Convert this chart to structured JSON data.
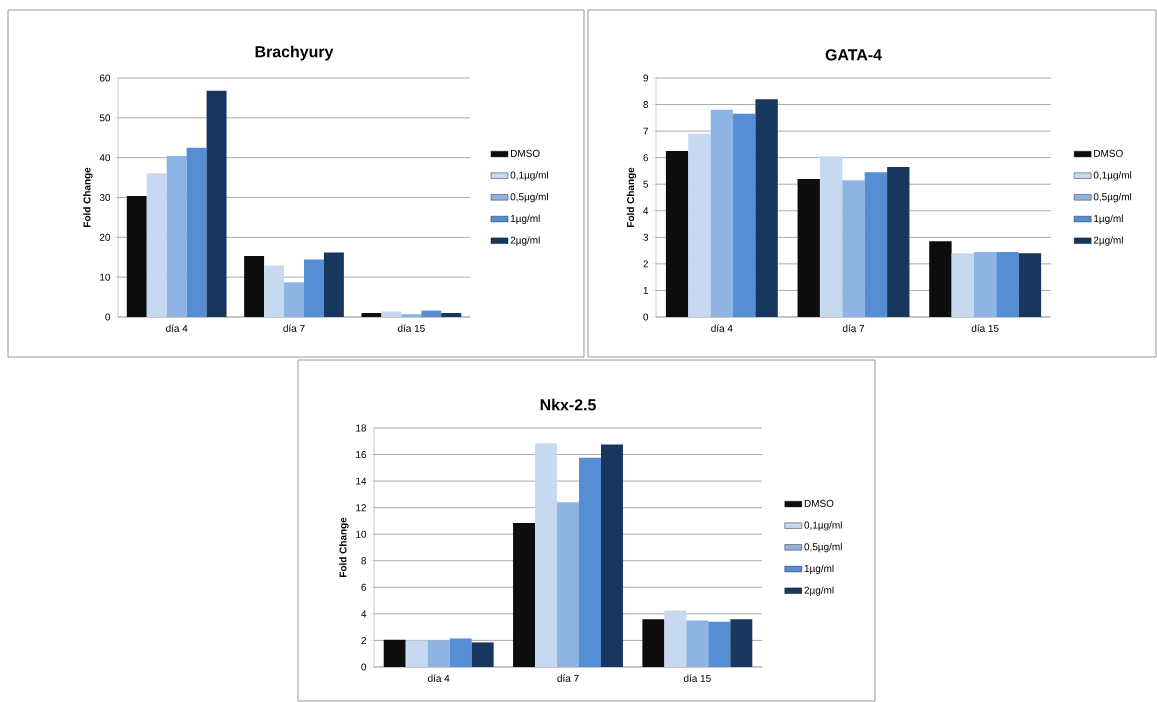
{
  "chart_data": [
    {
      "type": "bar",
      "title": "Brachyury",
      "ylabel": "Fold Change",
      "categories": [
        "día 4",
        "día 7",
        "día 15"
      ],
      "ylim": [
        0,
        60
      ],
      "yticks": [
        0,
        10,
        20,
        30,
        40,
        50,
        60
      ],
      "grid": "y",
      "legend": "right",
      "series": [
        {
          "name": "DMSO",
          "color": "#0d0d0d",
          "values": [
            30.4,
            15.3,
            1.0
          ]
        },
        {
          "name": "0,1µg/ml",
          "color": "#c6d9f1",
          "values": [
            36.1,
            12.9,
            1.4
          ]
        },
        {
          "name": "0,5µg/ml",
          "color": "#8eb4e3",
          "values": [
            40.4,
            8.7,
            0.7
          ]
        },
        {
          "name": "1µg/ml",
          "color": "#558ed5",
          "values": [
            42.5,
            14.4,
            1.6
          ]
        },
        {
          "name": "2µg/ml",
          "color": "#17375e",
          "values": [
            56.8,
            16.2,
            1.0
          ]
        }
      ]
    },
    {
      "type": "bar",
      "title": "GATA-4",
      "ylabel": "Fold Change",
      "categories": [
        "día 4",
        "día 7",
        "día 15"
      ],
      "ylim": [
        0,
        9
      ],
      "yticks": [
        0,
        1,
        2,
        3,
        4,
        5,
        6,
        7,
        8,
        9
      ],
      "grid": "y",
      "legend": "right",
      "series": [
        {
          "name": "DMSO",
          "color": "#0d0d0d",
          "values": [
            6.25,
            5.2,
            2.85
          ]
        },
        {
          "name": "0,1µg/ml",
          "color": "#c6d9f1",
          "values": [
            6.9,
            6.05,
            2.4
          ]
        },
        {
          "name": "0,5µg/ml",
          "color": "#8eb4e3",
          "values": [
            7.8,
            5.15,
            2.45
          ]
        },
        {
          "name": "1µg/ml",
          "color": "#558ed5",
          "values": [
            7.65,
            5.45,
            2.45
          ]
        },
        {
          "name": "2µg/ml",
          "color": "#17375e",
          "values": [
            8.2,
            5.65,
            2.4
          ]
        }
      ]
    },
    {
      "type": "bar",
      "title": "Nkx-2.5",
      "ylabel": "Fold Change",
      "categories": [
        "día 4",
        "día 7",
        "día 15"
      ],
      "ylim": [
        0,
        18
      ],
      "yticks": [
        0,
        2,
        4,
        6,
        8,
        10,
        12,
        14,
        16,
        18
      ],
      "grid": "y",
      "legend": "right",
      "series": [
        {
          "name": "DMSO",
          "color": "#0d0d0d",
          "values": [
            2.05,
            10.85,
            3.6
          ]
        },
        {
          "name": "0,1µg/ml",
          "color": "#c6d9f1",
          "values": [
            2.0,
            16.85,
            4.25
          ]
        },
        {
          "name": "0,5µg/ml",
          "color": "#8eb4e3",
          "values": [
            2.0,
            12.4,
            3.5
          ]
        },
        {
          "name": "1µg/ml",
          "color": "#558ed5",
          "values": [
            2.15,
            15.75,
            3.4
          ]
        },
        {
          "name": "2µg/ml",
          "color": "#17375e",
          "values": [
            1.85,
            16.75,
            3.6
          ]
        }
      ]
    }
  ]
}
